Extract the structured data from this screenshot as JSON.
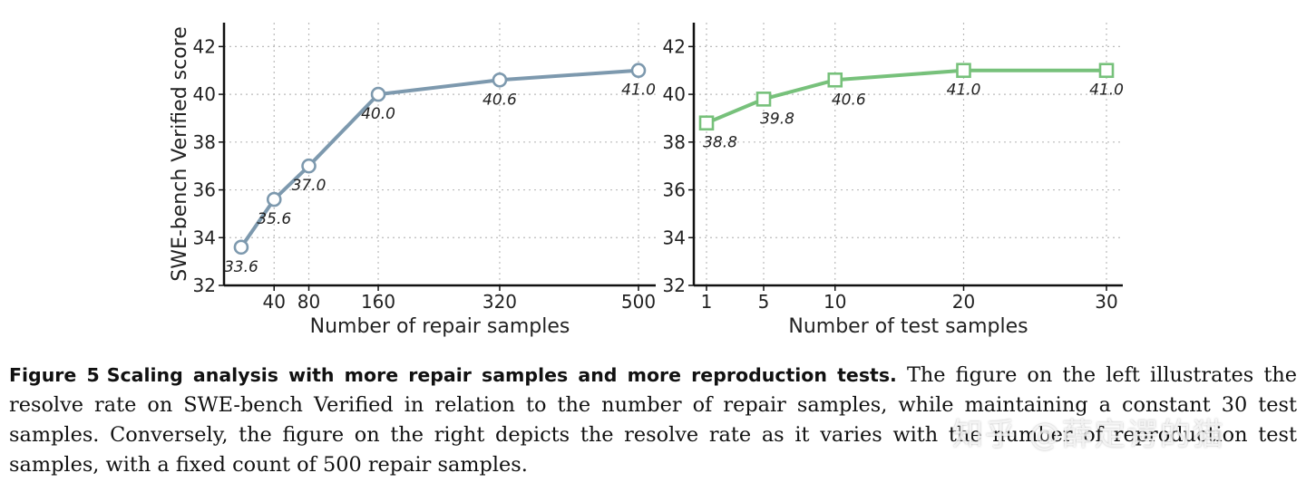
{
  "chart_data": [
    {
      "type": "line",
      "marker": "circle",
      "color": "#7d99ae",
      "x": [
        20,
        40,
        80,
        160,
        320,
        500
      ],
      "x_positions": [
        0.05,
        1,
        2,
        4,
        7.5,
        11.5
      ],
      "tick_labels": [
        "40",
        "80",
        "160",
        "320",
        "500"
      ],
      "tick_positions": [
        1,
        2,
        4,
        7.5,
        11.5
      ],
      "values": [
        33.6,
        35.6,
        37.0,
        40.0,
        40.6,
        41.0
      ],
      "data_labels": [
        "33.6",
        "35.6",
        "37.0",
        "40.0",
        "40.6",
        "41.0"
      ],
      "xlabel": "Number of repair samples",
      "ylabel": "SWE-bench Verified score",
      "ylim": [
        32,
        43
      ],
      "yticks": [
        32,
        34,
        36,
        38,
        40,
        42
      ],
      "grid": true
    },
    {
      "type": "line",
      "marker": "square",
      "color": "#77c17b",
      "x": [
        1,
        5,
        10,
        20,
        30
      ],
      "x_positions": [
        0,
        1,
        2.25,
        4.5,
        7
      ],
      "tick_labels": [
        "1",
        "5",
        "10",
        "20",
        "30"
      ],
      "tick_positions": [
        0,
        1,
        2.25,
        4.5,
        7
      ],
      "values": [
        38.8,
        39.8,
        40.6,
        41.0,
        41.0
      ],
      "data_labels": [
        "38.8",
        "39.8",
        "40.6",
        "41.0",
        "41.0"
      ],
      "xlabel": "Number of test samples",
      "ylabel": "",
      "ylim": [
        32,
        43
      ],
      "yticks": [
        32,
        34,
        36,
        38,
        40,
        42
      ],
      "grid": true
    }
  ],
  "caption": {
    "figure_label": "Figure 5",
    "title": "Scaling analysis with more repair samples and more reproduction tests.",
    "text": "The figure on the left illustrates the resolve rate on SWE-bench Verified in relation to the number of repair samples, while maintaining a constant 30 test samples. Conversely, the figure on the right depicts the resolve rate as it varies with the number of reproduction test samples, with a fixed count of 500 repair samples."
  },
  "watermark": "知乎 @薛定谔的猫"
}
